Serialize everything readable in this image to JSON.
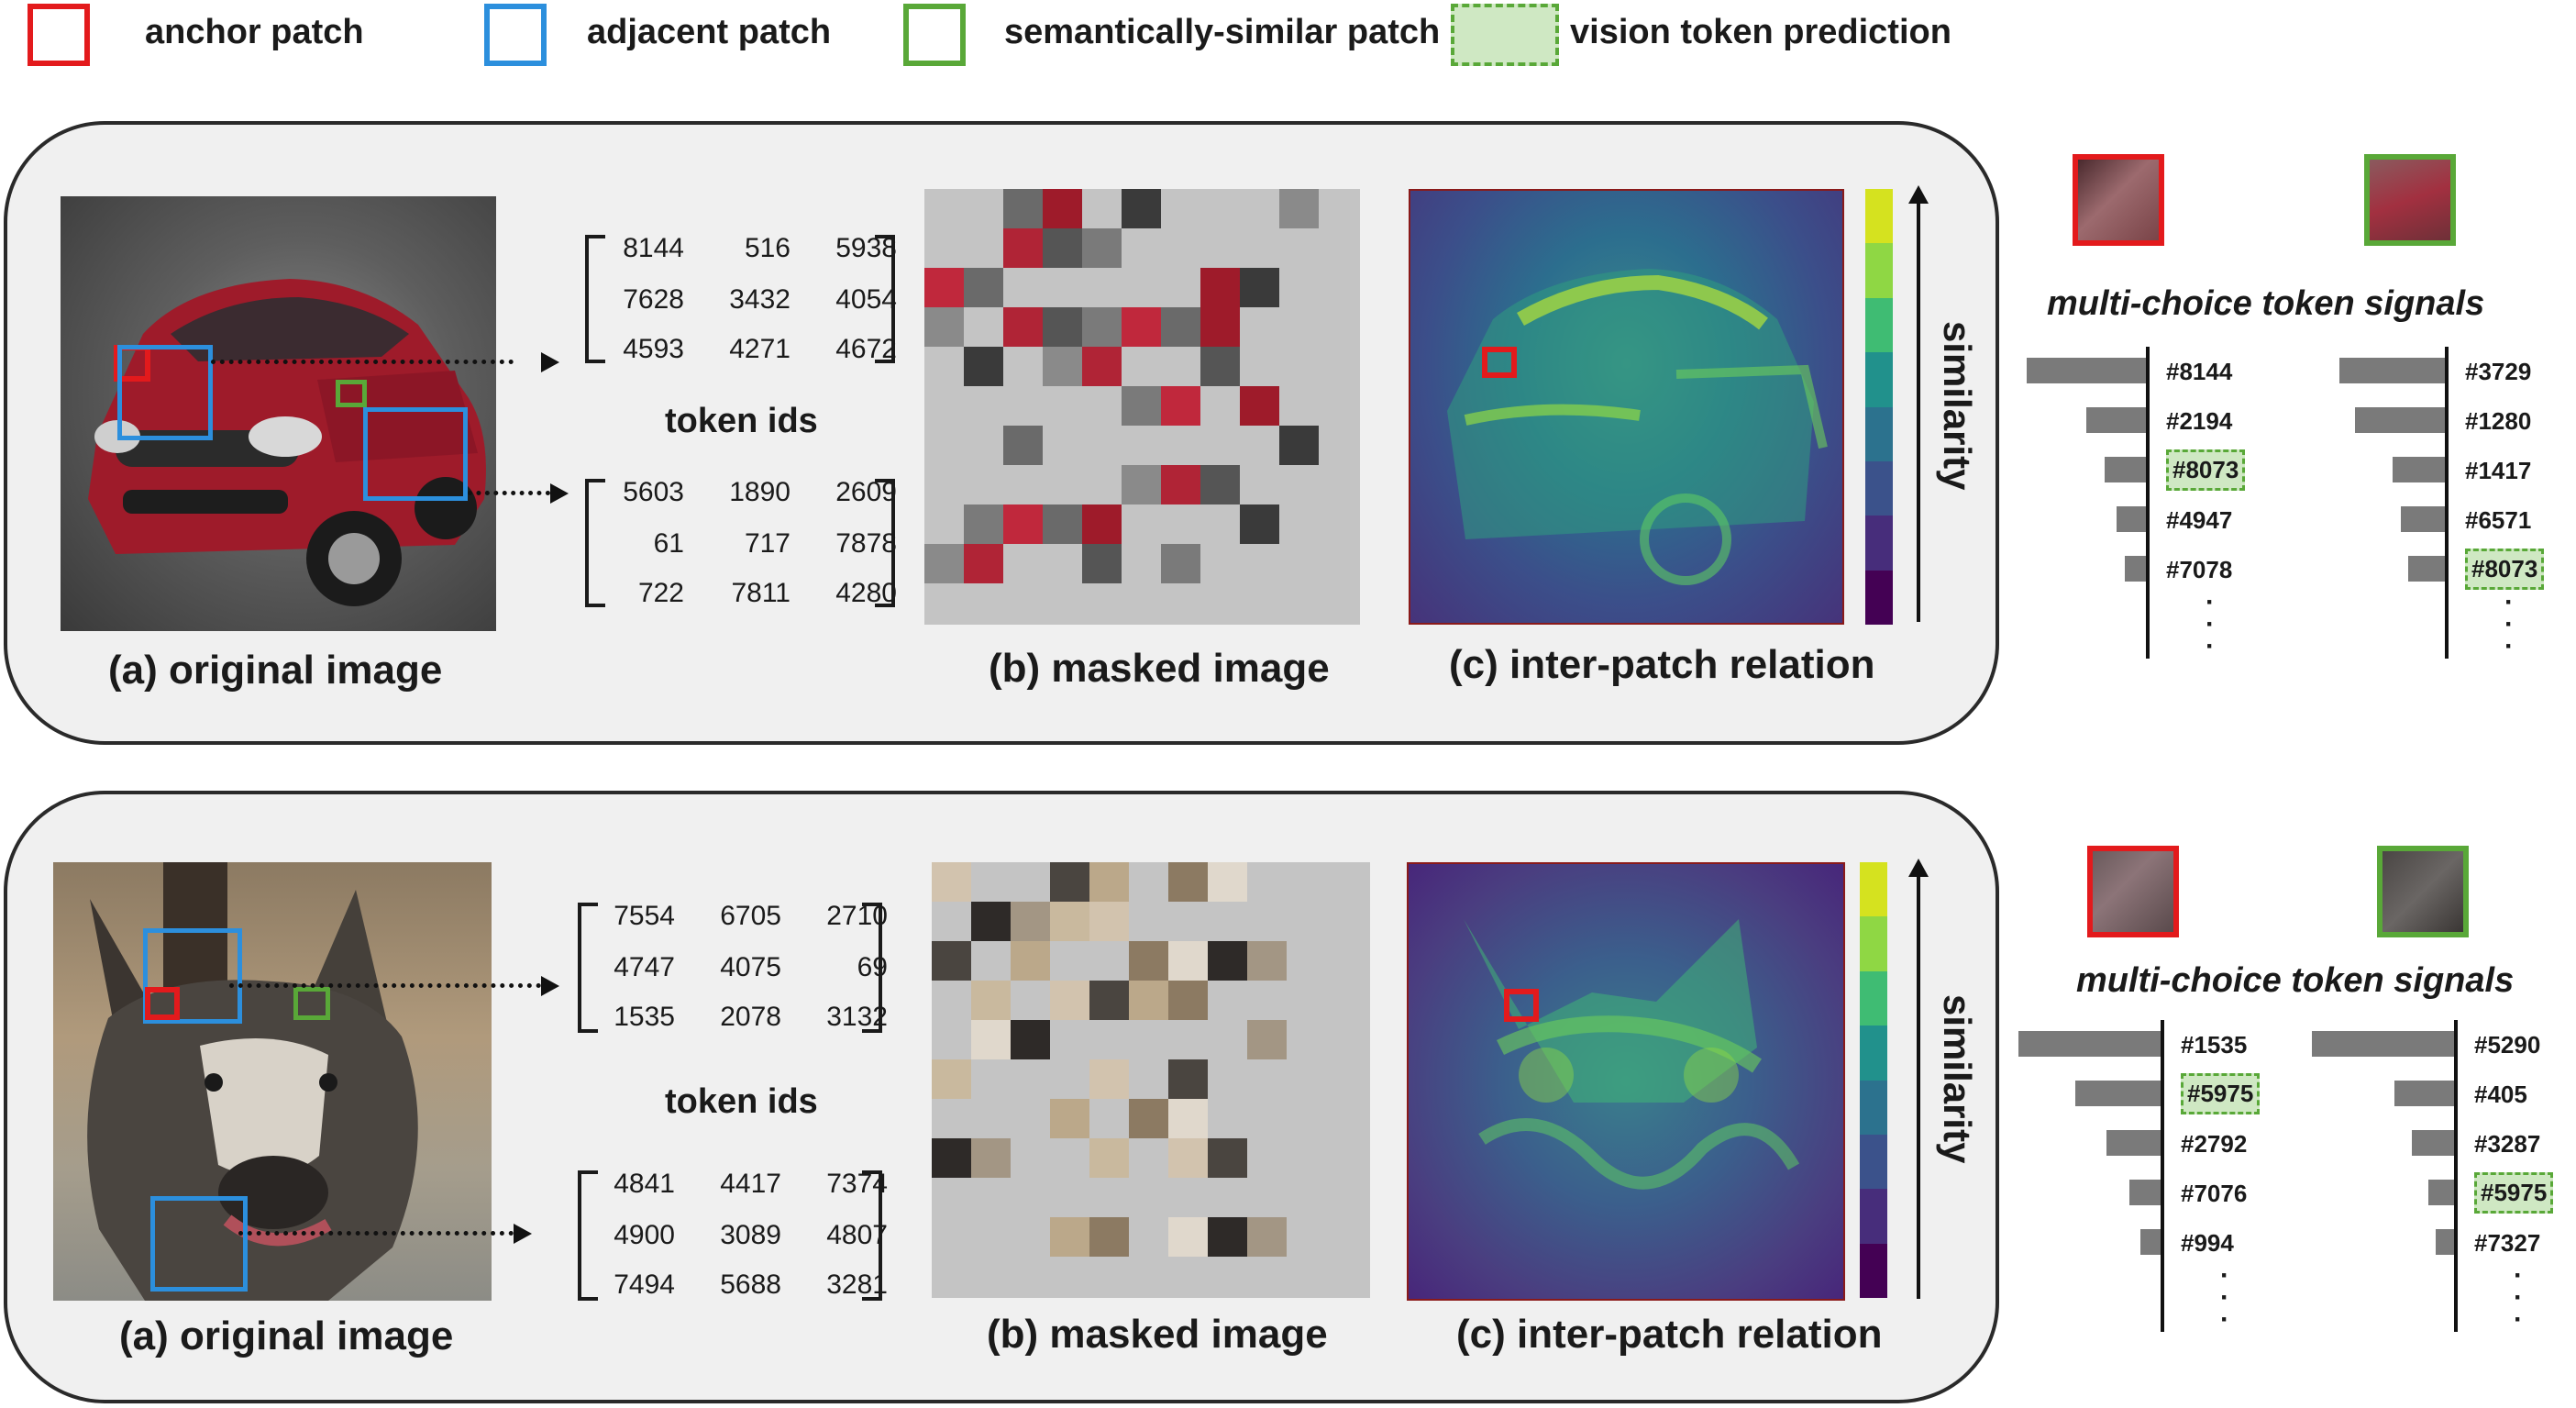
{
  "legend": [
    {
      "label": "anchor patch",
      "color": "#e31a1c",
      "style": "solid"
    },
    {
      "label": "adjacent patch",
      "color": "#2c8fdd",
      "style": "solid"
    },
    {
      "label": "semantically-similar patch",
      "color": "#59a838",
      "style": "solid"
    },
    {
      "label": "vision token prediction",
      "color": "#59a838",
      "style": "dashed-fill"
    }
  ],
  "captions": {
    "original": "(a) original image",
    "masked": "(b) masked image",
    "relation": "(c) inter-patch relation"
  },
  "token_ids_label": "token ids",
  "similarity_label": "similarity",
  "multi_choice_title": "multi-choice token signals",
  "panels": [
    {
      "name": "car",
      "matrix_top": [
        [
          "8144",
          "516",
          "5938"
        ],
        [
          "7628",
          "3432",
          "4054"
        ],
        [
          "4593",
          "4271",
          "4672"
        ]
      ],
      "matrix_bottom": [
        [
          "5603",
          "1890",
          "2609"
        ],
        [
          "61",
          "717",
          "7878"
        ],
        [
          "722",
          "7811",
          "4280"
        ]
      ],
      "signals_anchor": [
        {
          "id": "#8144",
          "value": 1.0,
          "predicted": false
        },
        {
          "id": "#2194",
          "value": 0.5,
          "predicted": false
        },
        {
          "id": "#8073",
          "value": 0.35,
          "predicted": true
        },
        {
          "id": "#4947",
          "value": 0.25,
          "predicted": false
        },
        {
          "id": "#7078",
          "value": 0.18,
          "predicted": false
        }
      ],
      "signals_similar": [
        {
          "id": "#3729",
          "value": 1.0,
          "predicted": false
        },
        {
          "id": "#1280",
          "value": 0.85,
          "predicted": false
        },
        {
          "id": "#1417",
          "value": 0.5,
          "predicted": false
        },
        {
          "id": "#6571",
          "value": 0.42,
          "predicted": false
        },
        {
          "id": "#8073",
          "value": 0.35,
          "predicted": true
        }
      ]
    },
    {
      "name": "dog",
      "matrix_top": [
        [
          "7554",
          "6705",
          "2710"
        ],
        [
          "4747",
          "4075",
          "69"
        ],
        [
          "1535",
          "2078",
          "3132"
        ]
      ],
      "matrix_bottom": [
        [
          "4841",
          "4417",
          "7374"
        ],
        [
          "4900",
          "3089",
          "4807"
        ],
        [
          "7494",
          "5688",
          "3281"
        ]
      ],
      "signals_anchor": [
        {
          "id": "#1535",
          "value": 1.0,
          "predicted": false
        },
        {
          "id": "#5975",
          "value": 0.6,
          "predicted": true
        },
        {
          "id": "#2792",
          "value": 0.38,
          "predicted": false
        },
        {
          "id": "#7076",
          "value": 0.22,
          "predicted": false
        },
        {
          "id": "#994",
          "value": 0.14,
          "predicted": false
        }
      ],
      "signals_similar": [
        {
          "id": "#5290",
          "value": 1.0,
          "predicted": false
        },
        {
          "id": "#405",
          "value": 0.42,
          "predicted": false
        },
        {
          "id": "#3287",
          "value": 0.3,
          "predicted": false
        },
        {
          "id": "#5975",
          "value": 0.18,
          "predicted": true
        },
        {
          "id": "#7327",
          "value": 0.12,
          "predicted": false
        }
      ]
    }
  ],
  "colorbar": [
    "#d5e21f",
    "#8fd744",
    "#3fbc73",
    "#21918c",
    "#2c728e",
    "#3b528b",
    "#472d7b",
    "#440154"
  ]
}
